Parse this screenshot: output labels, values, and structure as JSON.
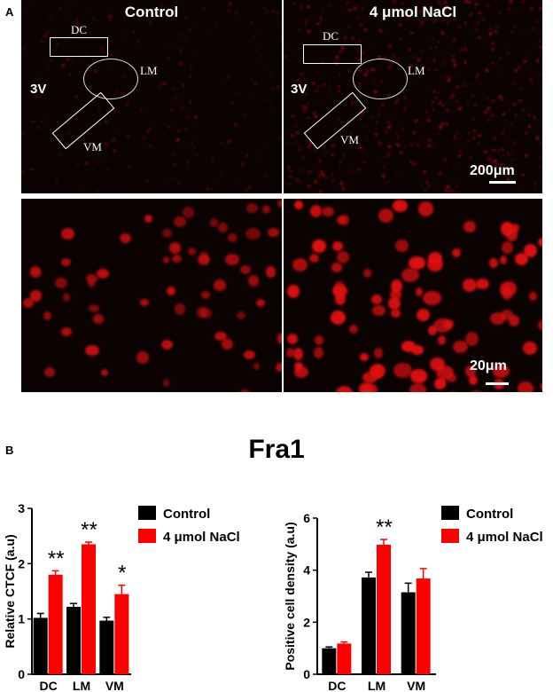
{
  "panels": {
    "a_label": "A",
    "b_label": "B",
    "control_title": "Control",
    "nacl_title": "4 μmol NaCl",
    "ventricle_label": "3V",
    "regions": [
      "DC",
      "LM",
      "VM"
    ],
    "scale_low": "200μm",
    "scale_high": "20μm"
  },
  "figure_title": "Fra1",
  "colors": {
    "control": "#000000",
    "nacl": "#ff0000",
    "tissue_bg": "#0b0202",
    "cell": "#e01010"
  },
  "chart_data": [
    {
      "type": "bar",
      "categories": [
        "DC",
        "LM",
        "VM"
      ],
      "series": [
        {
          "name": "Control",
          "values": [
            1.02,
            1.22,
            0.97
          ],
          "errors": [
            0.08,
            0.06,
            0.06
          ]
        },
        {
          "name": "4 μmol NaCl",
          "values": [
            1.8,
            2.35,
            1.45
          ],
          "errors": [
            0.07,
            0.04,
            0.16
          ]
        }
      ],
      "significance": [
        "**",
        "**",
        "*"
      ],
      "ylabel": "Relative CTCF (a.u)",
      "xlabel": "",
      "ylim": [
        0,
        3
      ],
      "yticks": [
        0,
        1,
        2,
        3
      ],
      "legend": "top-right"
    },
    {
      "type": "bar",
      "categories": [
        "DC",
        "LM",
        "VM"
      ],
      "series": [
        {
          "name": "Control",
          "values": [
            1.0,
            3.72,
            3.15
          ],
          "errors": [
            0.05,
            0.2,
            0.35
          ]
        },
        {
          "name": "4 μmol NaCl",
          "values": [
            1.18,
            4.98,
            3.68
          ],
          "errors": [
            0.06,
            0.2,
            0.38
          ]
        }
      ],
      "significance": [
        "",
        "**",
        ""
      ],
      "ylabel": "Positive cell density (a.u)",
      "xlabel": "",
      "ylim": [
        0,
        6
      ],
      "yticks": [
        0,
        2,
        4,
        6
      ],
      "legend": "top-right"
    }
  ]
}
